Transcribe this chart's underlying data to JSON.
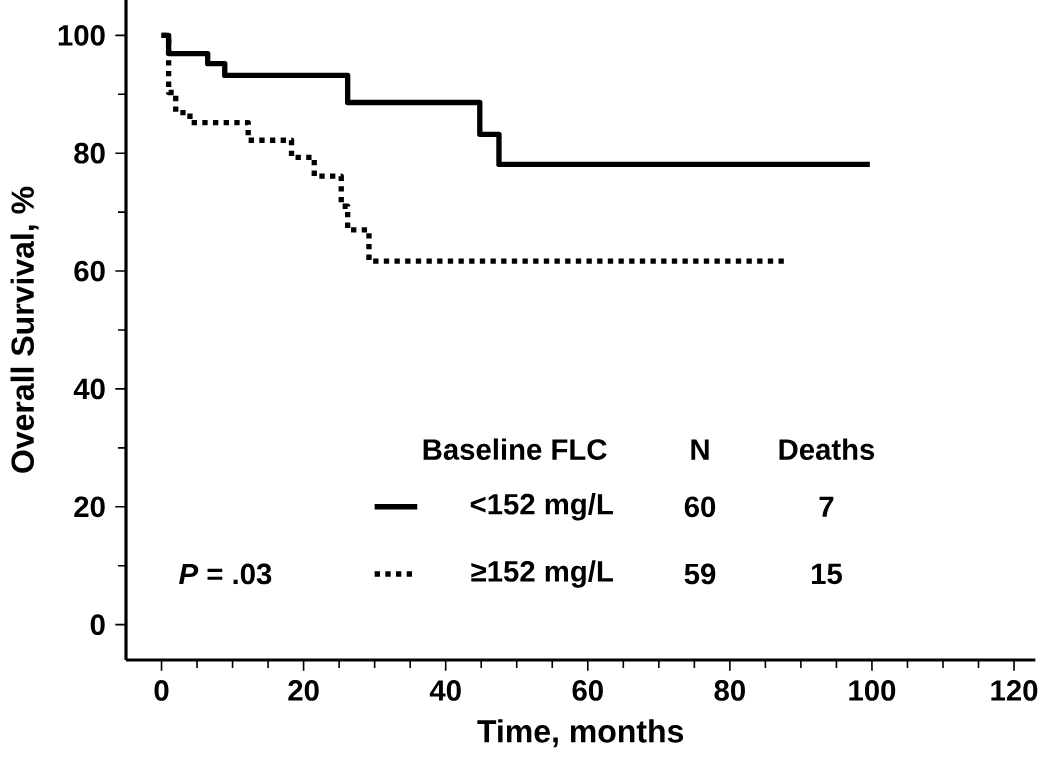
{
  "chart_data": {
    "type": "step",
    "xlabel": "Time, months",
    "ylabel": "Overall Survival, %",
    "legend_title": "Baseline FLC",
    "xlim": [
      -5,
      123
    ],
    "ylim": [
      -6,
      106
    ],
    "xticks": [
      0,
      20,
      40,
      60,
      80,
      100,
      120
    ],
    "yticks": [
      0,
      20,
      40,
      60,
      80,
      100
    ],
    "series": [
      {
        "name": "<152 mg/L",
        "color": "#000000",
        "line_style": "solid",
        "x": [
          0,
          1,
          6.5,
          8.9,
          26.2,
          44.8,
          47.5,
          99.7
        ],
        "values": [
          100,
          96.9,
          95.2,
          93.2,
          88.6,
          83.2,
          78.1,
          78.1
        ]
      },
      {
        "name": "≥152 mg/L",
        "color": "#000000",
        "line_style": "dotted",
        "x": [
          0,
          1,
          2,
          4,
          12.2,
          18.3,
          21.5,
          25.3,
          26.2,
          29.2,
          88
        ],
        "values": [
          100,
          90.3,
          86.9,
          85.2,
          82.2,
          79.3,
          76.1,
          71.0,
          67.0,
          61.7,
          61.7
        ]
      }
    ],
    "legend": "bottom",
    "annotations": [
      "N",
      "Deaths",
      "60",
      "7",
      "59",
      "15",
      "*P* = .03"
    ]
  }
}
